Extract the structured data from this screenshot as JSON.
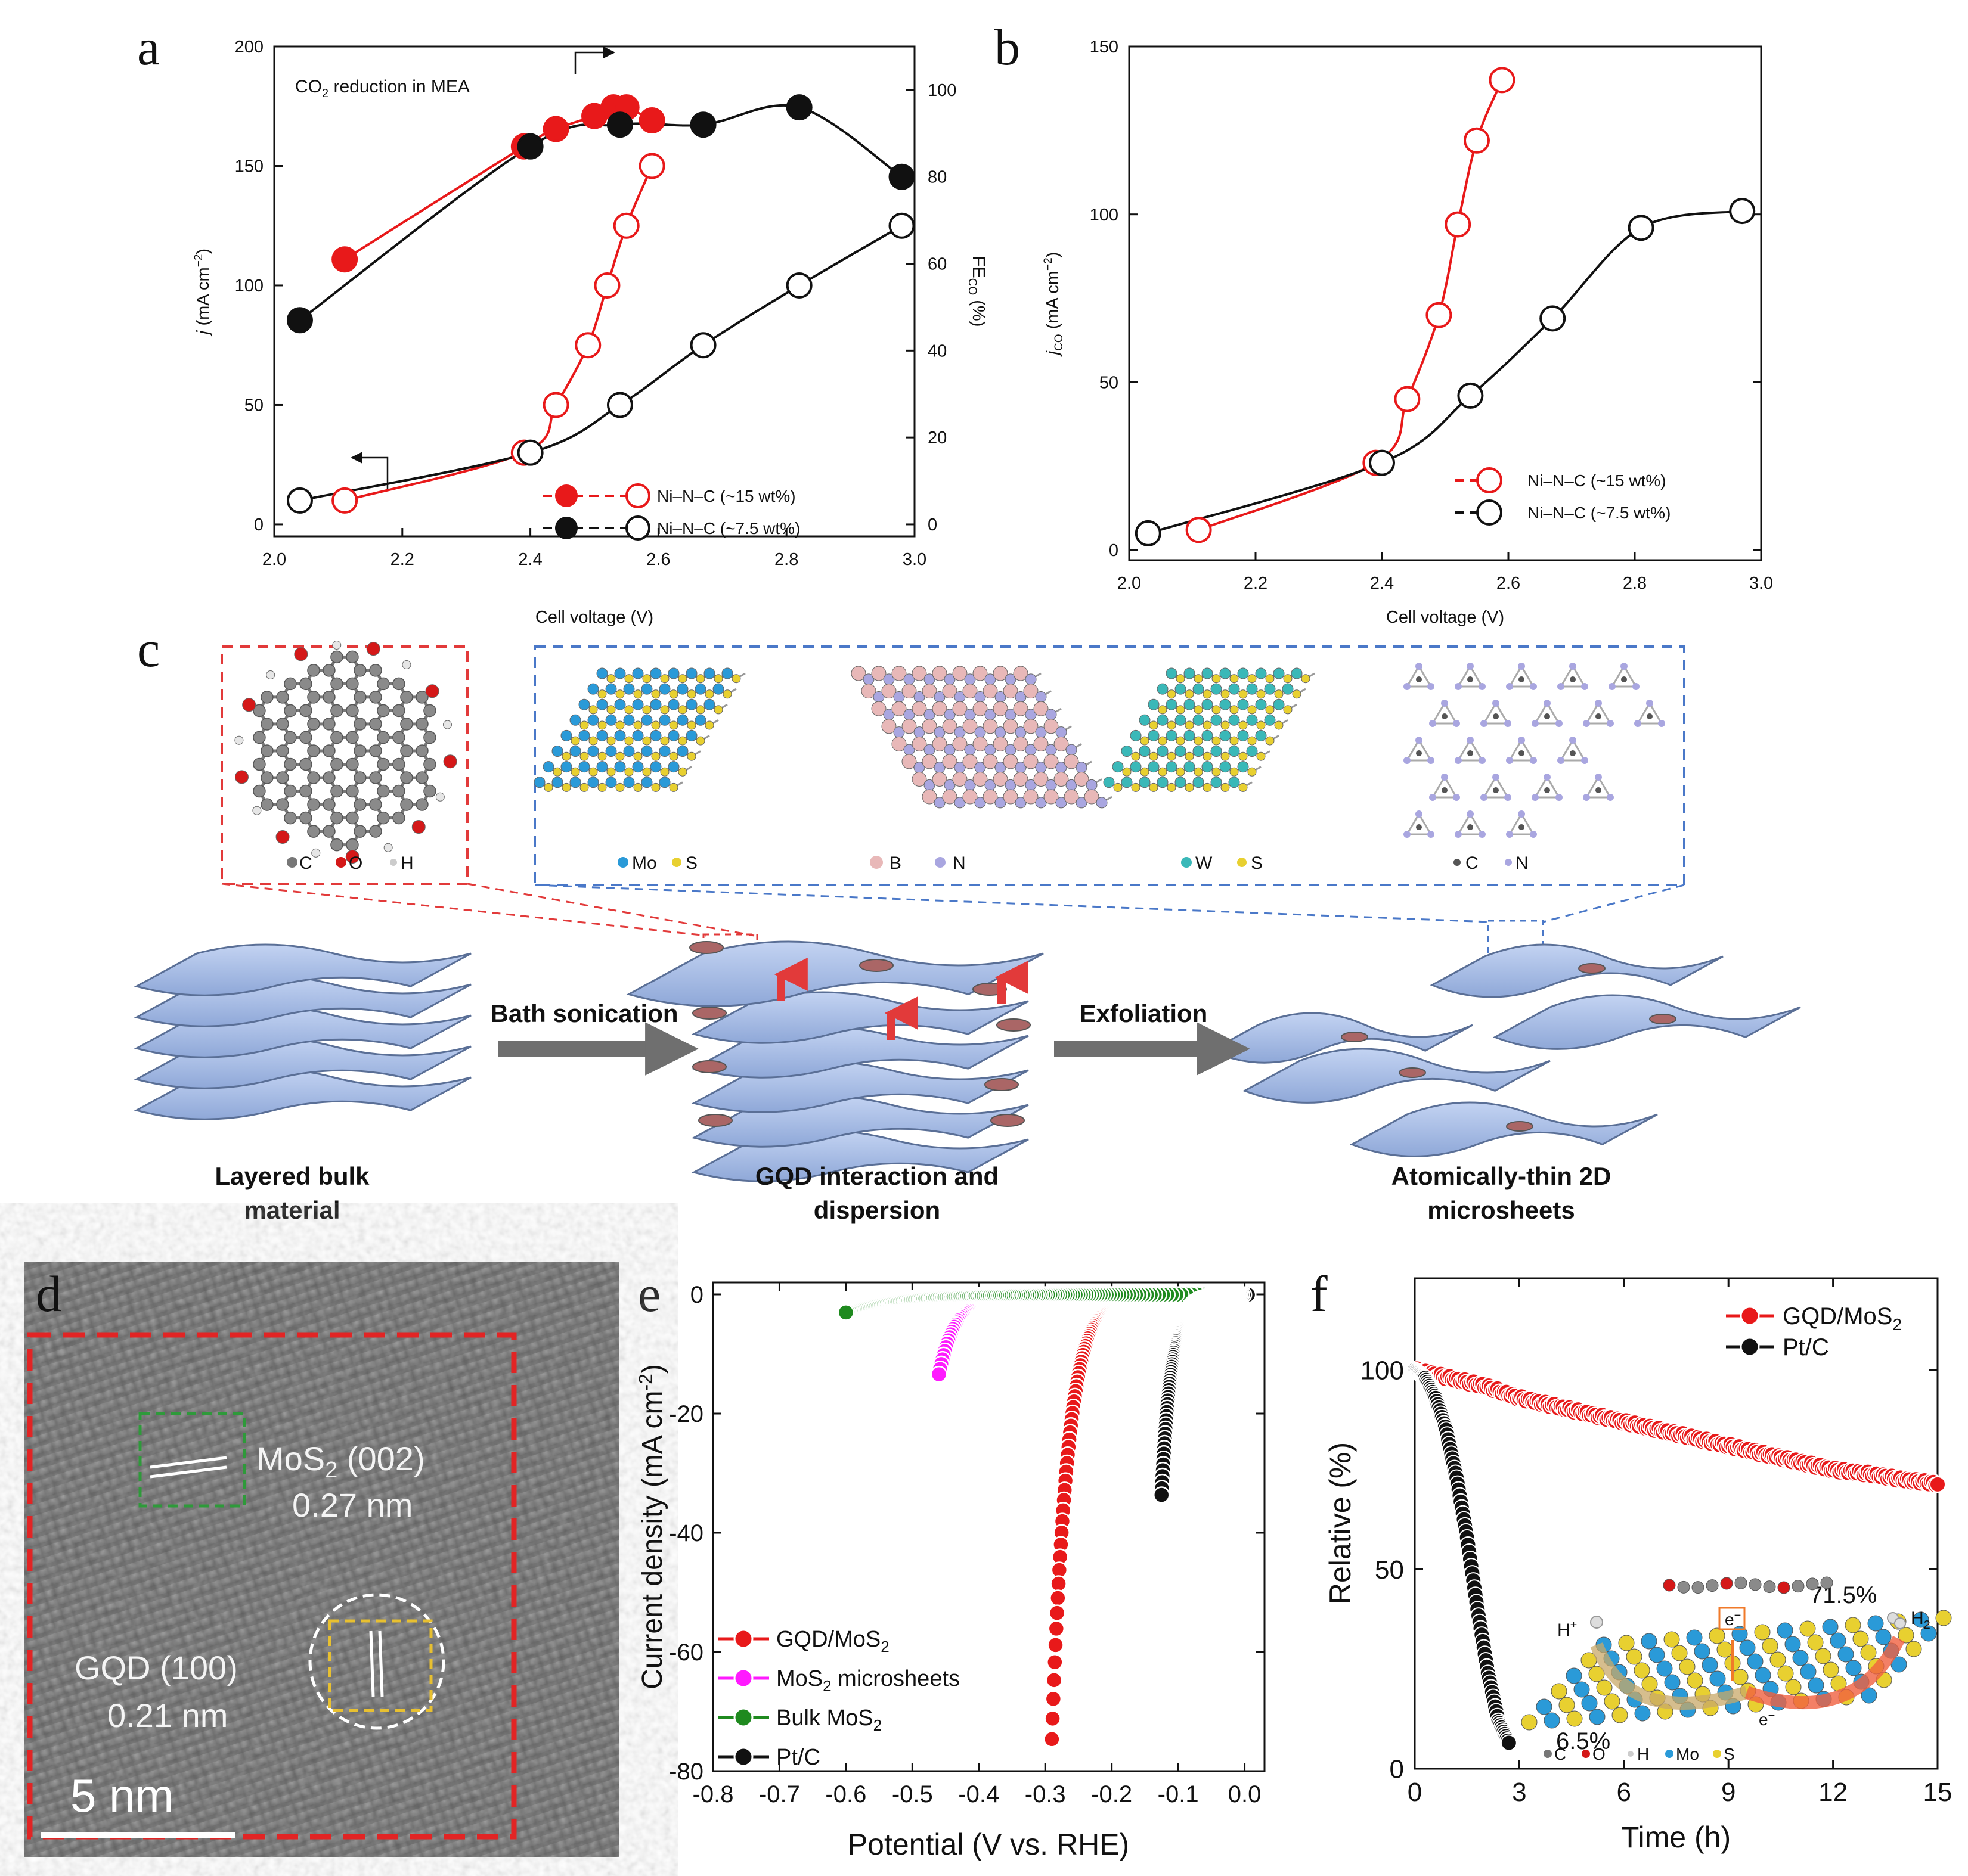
{
  "panel_letters": {
    "a": "a",
    "b": "b",
    "c": "c",
    "d": "d",
    "e": "e",
    "f": "f"
  },
  "colors": {
    "red": "#e8191a",
    "black": "#111111",
    "green": "#1f8a1f",
    "magenta": "#ff1aff",
    "sheet": "#a9bfe8",
    "sheet_edge": "#5a6f96",
    "gray_arrow": "#6f6f6f",
    "dash_red": "#e23a3a",
    "dash_blue": "#4a78c8"
  },
  "chart_data": [
    {
      "id": "a",
      "type": "line",
      "title": "CO2 reduction in MEA",
      "xlabel": "Cell voltage (V)",
      "ylabel": "j (mA cm-2)",
      "y2label": "FE_CO (%)",
      "xlim": [
        2.0,
        3.0
      ],
      "ylim": [
        0,
        200
      ],
      "y2lim": [
        0,
        110
      ],
      "xticks": [
        "2.0",
        "2.2",
        "2.4",
        "2.6",
        "2.8",
        "3.0"
      ],
      "yticks": [
        "0",
        "50",
        "100",
        "150",
        "200"
      ],
      "y2ticks": [
        "0",
        "20",
        "40",
        "60",
        "80",
        "100"
      ],
      "legend": [
        "Ni–N–C (~15 wt%)",
        "Ni–N–C (~7.5 wt%)"
      ],
      "series": [
        {
          "name": "Ni–N–C (~15 wt%) j",
          "axis": "left",
          "filled": false,
          "color": "#e8191a",
          "x": [
            2.11,
            2.39,
            2.44,
            2.49,
            2.52,
            2.55,
            2.59
          ],
          "values": [
            10,
            30,
            50,
            75,
            100,
            125,
            150
          ]
        },
        {
          "name": "Ni–N–C (~7.5 wt%) j",
          "axis": "left",
          "filled": false,
          "color": "#111111",
          "x": [
            2.04,
            2.4,
            2.54,
            2.67,
            2.82,
            2.98
          ],
          "values": [
            10,
            30,
            50,
            75,
            100,
            125
          ]
        },
        {
          "name": "Ni–N–C (~15 wt%) FE",
          "axis": "right",
          "filled": true,
          "color": "#e8191a",
          "x": [
            2.11,
            2.39,
            2.44,
            2.5,
            2.53,
            2.55,
            2.59
          ],
          "values": [
            61,
            87,
            91,
            94,
            96,
            96,
            93
          ]
        },
        {
          "name": "Ni–N–C (~7.5 wt%) FE",
          "axis": "right",
          "filled": true,
          "color": "#111111",
          "x": [
            2.04,
            2.4,
            2.54,
            2.67,
            2.82,
            2.98
          ],
          "values": [
            47,
            87,
            92,
            92,
            96,
            80
          ]
        }
      ]
    },
    {
      "id": "b",
      "type": "line",
      "xlabel": "Cell voltage (V)",
      "ylabel": "j_CO (mA cm-2)",
      "xlim": [
        2.0,
        3.0
      ],
      "ylim": [
        0,
        150
      ],
      "xticks": [
        "2.0",
        "2.2",
        "2.4",
        "2.6",
        "2.8",
        "3.0"
      ],
      "yticks": [
        "0",
        "50",
        "100",
        "150"
      ],
      "legend": [
        "Ni–N–C (~15 wt%)",
        "Ni–N–C (~7.5 wt%)"
      ],
      "series": [
        {
          "name": "Ni–N–C (~15 wt%)",
          "color": "#e8191a",
          "x": [
            2.11,
            2.39,
            2.44,
            2.49,
            2.52,
            2.55,
            2.59
          ],
          "values": [
            6,
            26,
            45,
            70,
            97,
            122,
            140
          ]
        },
        {
          "name": "Ni–N–C (~7.5 wt%)",
          "color": "#111111",
          "x": [
            2.03,
            2.4,
            2.54,
            2.67,
            2.81,
            2.97
          ],
          "values": [
            5,
            26,
            46,
            69,
            96,
            101
          ]
        }
      ]
    },
    {
      "id": "e",
      "type": "scatter",
      "xlabel": "Potential (V vs. RHE)",
      "ylabel": "Current density (mA cm-2)",
      "xlim": [
        -0.8,
        0.03
      ],
      "ylim": [
        -80,
        2
      ],
      "xticks": [
        "-0.8",
        "-0.7",
        "-0.6",
        "-0.5",
        "-0.4",
        "-0.3",
        "-0.2",
        "-0.1",
        "0.0"
      ],
      "yticks": [
        "0",
        "-20",
        "-40",
        "-60",
        "-80"
      ],
      "legend": [
        "GQD/MoS2",
        "MoS2 microsheets",
        "Bulk MoS2",
        "Pt/C"
      ],
      "series": [
        {
          "name": "GQD/MoS2",
          "color": "#e8191a",
          "onset": -0.13,
          "scale": 0.0234,
          "xmin": -0.29
        },
        {
          "name": "MoS2 microsheets",
          "color": "#ff1aff",
          "onset": -0.33,
          "scale": 0.0254,
          "xmin": -0.46
        },
        {
          "name": "Bulk MoS2",
          "color": "#1f8a1f",
          "onset": -0.37,
          "scale": 0.0635,
          "xmin": -0.6
        },
        {
          "name": "Pt/C",
          "color": "#111111",
          "onset": -0.035,
          "scale": 0.0149,
          "xmin": -0.125
        }
      ]
    },
    {
      "id": "f",
      "type": "line",
      "xlabel": "Time (h)",
      "ylabel": "Relative (%)",
      "xlim": [
        0,
        15
      ],
      "ylim": [
        0,
        125
      ],
      "xticks": [
        "0",
        "3",
        "6",
        "9",
        "12",
        "15"
      ],
      "yticks": [
        "0",
        "50",
        "100"
      ],
      "legend": [
        "GQD/MoS2",
        "Pt/C"
      ],
      "annotations": [
        "71.5%",
        "6.5%"
      ],
      "series": [
        {
          "name": "GQD/MoS2",
          "color": "#e8191a",
          "x": [
            0,
            1,
            2,
            3,
            4,
            5,
            6,
            7,
            8,
            9,
            10,
            11,
            12,
            13,
            14,
            15
          ],
          "values": [
            100,
            98,
            96,
            93,
            91,
            89,
            87,
            85,
            83,
            81,
            79,
            77,
            75,
            74,
            72.5,
            71.5
          ]
        },
        {
          "name": "Pt/C",
          "color": "#111111",
          "x": [
            0,
            0.3,
            0.6,
            0.9,
            1.2,
            1.5,
            1.8,
            2.1,
            2.4,
            2.7
          ],
          "values": [
            100,
            98,
            93,
            85,
            73,
            58,
            40,
            24,
            12,
            6.5
          ]
        }
      ]
    }
  ],
  "panel_a": {
    "title_main": "CO",
    "title_sub": "2",
    "title_rest": " reduction in MEA",
    "legend1": "Ni–N–C (~15 wt%)",
    "legend2": "Ni–N–C (~7.5 wt%)",
    "xlabel": "Cell voltage (V)",
    "ylabel_j": "j",
    "ylabel_unit": " (mA cm",
    "ylabel_sup": "−2",
    "ylabel_close": ")",
    "y2label_fe": "FE",
    "y2label_sub": "CO",
    "y2label_unit": " (%)"
  },
  "panel_b": {
    "legend1": "Ni–N–C (~15 wt%)",
    "legend2": "Ni–N–C (~7.5 wt%)",
    "xlabel": "Cell voltage (V)",
    "ylabel_j": "j",
    "ylabel_sub": "CO",
    "ylabel_unit": " (mA cm",
    "ylabel_sup": "−2",
    "ylabel_close": ")"
  },
  "panel_c": {
    "gqd_legend": [
      "C",
      "O",
      "H"
    ],
    "mos2_legend": [
      "Mo",
      "S"
    ],
    "bn_legend": [
      "B",
      "N"
    ],
    "ws2_legend": [
      "W",
      "S"
    ],
    "cn_legend": [
      "C",
      "N"
    ],
    "arrow1": "Bath sonication",
    "arrow2": "Exfoliation",
    "caption1_l1": "Layered bulk",
    "caption1_l2": "material",
    "caption2_l1": "GQD interaction and",
    "caption2_l2": "dispersion",
    "caption3_l1": "Atomically-thin 2D",
    "caption3_l2": "microsheets"
  },
  "panel_d": {
    "label1_main": "MoS",
    "label1_sub": "2",
    "label1_rest": " (002)",
    "label1_d": "0.27 nm",
    "label2_main": "GQD (100)",
    "label2_d": "0.21 nm",
    "scale": "5 nm"
  },
  "panel_e": {
    "legend": [
      "GQD/MoS",
      "MoS",
      "Bulk MoS",
      "Pt/C"
    ],
    "legend_sub": "2",
    "legend2_rest": " microsheets",
    "xlabel": "Potential (V vs. RHE)",
    "ylabel": "Current density (mA cm",
    "ylabel_sup": "-2",
    "ylabel_close": ")"
  },
  "panel_f": {
    "legend1": "GQD/MoS",
    "legend1_sub": "2",
    "legend2": "Pt/C",
    "ann1": "71.5%",
    "ann2": "6.5%",
    "xlabel": "Time (h)",
    "ylabel": "Relative (%)",
    "inset_hplus": "H",
    "inset_hplus_sup": "+",
    "inset_h2": "H",
    "inset_h2_sub": "2",
    "inset_e1": "e",
    "inset_e2": "e",
    "inset_e_sup": "−",
    "inset_legend": [
      "C",
      "O",
      "H",
      "Mo",
      "S"
    ]
  }
}
